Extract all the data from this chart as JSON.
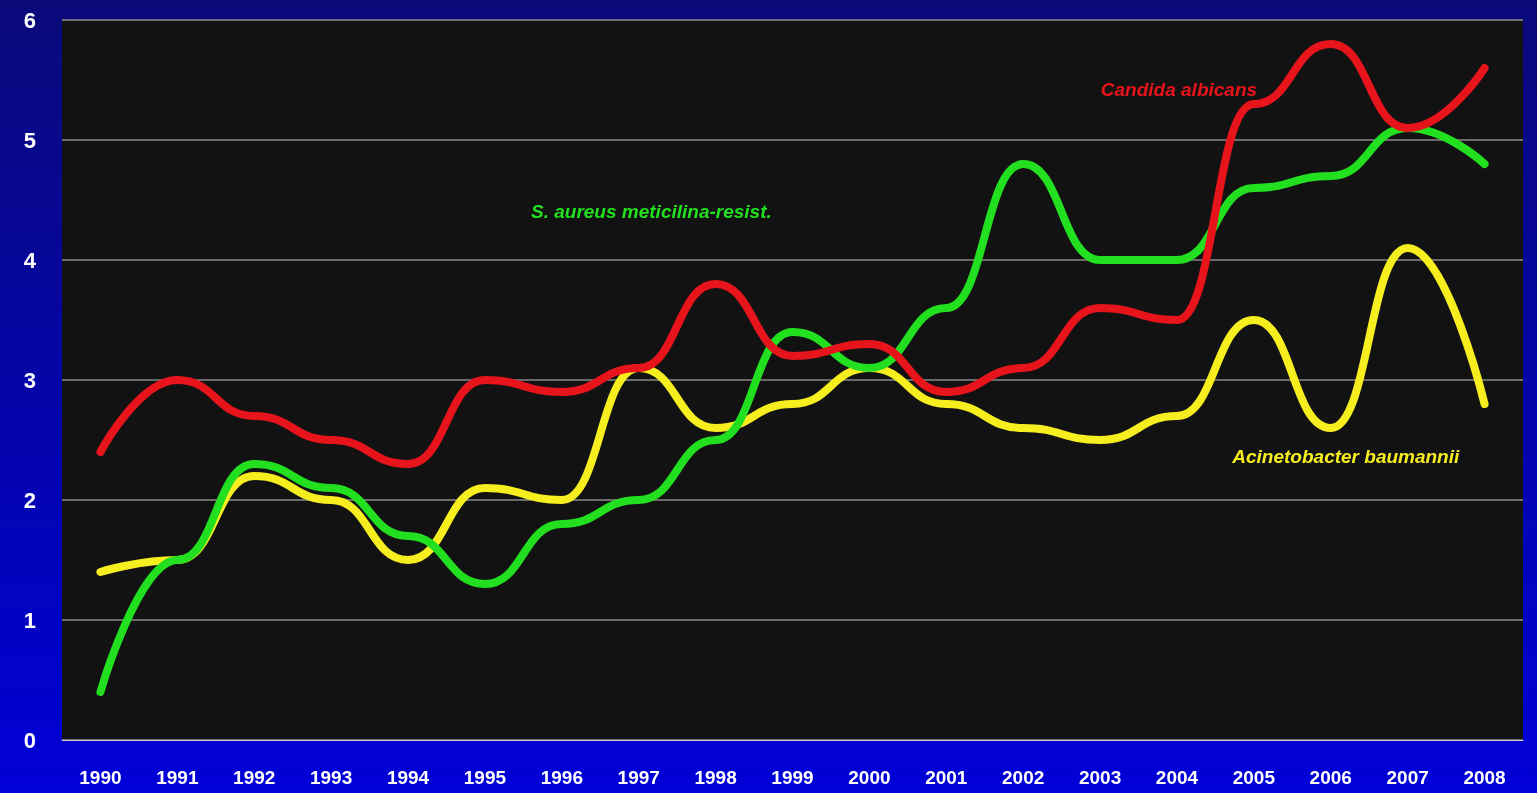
{
  "chart_data": {
    "type": "line",
    "categories": [
      "1990",
      "1991",
      "1992",
      "1993",
      "1994",
      "1995",
      "1996",
      "1997",
      "1998",
      "1999",
      "2000",
      "2001",
      "2002",
      "2003",
      "2004",
      "2005",
      "2006",
      "2007",
      "2008"
    ],
    "series": [
      {
        "name": "Candida albicans",
        "color": "#e8141b",
        "values": [
          2.4,
          3.0,
          2.7,
          2.5,
          2.3,
          3.0,
          2.9,
          3.1,
          3.8,
          3.2,
          3.3,
          2.9,
          3.1,
          3.6,
          3.5,
          5.3,
          5.8,
          5.1,
          5.6
        ]
      },
      {
        "name": "S. aureus meticilina-resist.",
        "color": "#22e01f",
        "values": [
          0.4,
          1.5,
          2.3,
          2.1,
          1.7,
          1.3,
          1.8,
          2.0,
          2.5,
          3.4,
          3.1,
          3.6,
          4.8,
          4.0,
          4.0,
          4.6,
          4.7,
          5.1,
          4.8
        ]
      },
      {
        "name": "Acinetobacter baumannii",
        "color": "#f7ee1f",
        "values": [
          1.4,
          1.5,
          2.2,
          2.0,
          1.5,
          2.1,
          2.0,
          3.1,
          2.6,
          2.8,
          3.1,
          2.8,
          2.6,
          2.5,
          2.7,
          3.5,
          2.6,
          4.1,
          2.8
        ]
      }
    ],
    "ylim": [
      0,
      6
    ],
    "yticks": [
      0,
      1,
      2,
      3,
      4,
      5,
      6
    ],
    "grid": "y",
    "marker": "none",
    "line_style": "solid",
    "legend": false
  }
}
